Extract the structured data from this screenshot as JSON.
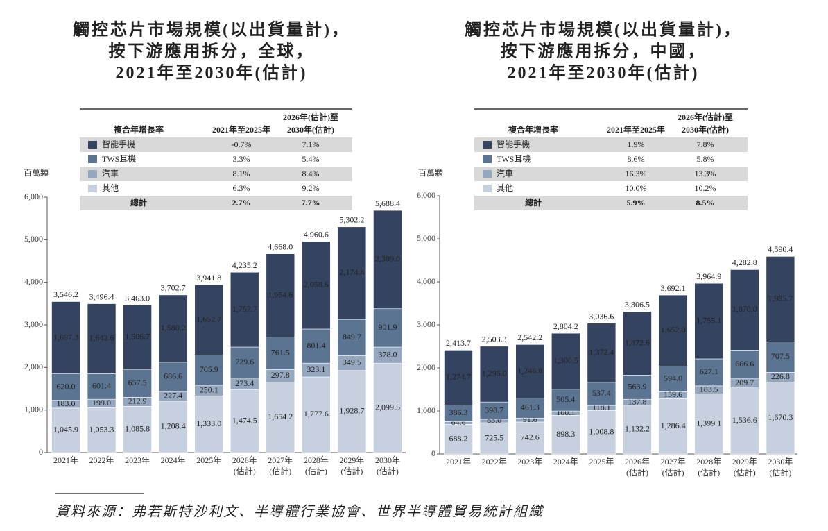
{
  "chart_data": [
    {
      "type": "stacked-bar",
      "title_lines": [
        "觸控芯片市場規模(以出貨量計)，",
        "按下游應用拆分，全球，",
        "2021年至2030年(估計)"
      ],
      "y_label": "百萬顆",
      "categories": [
        [
          "2021年"
        ],
        [
          "2022年"
        ],
        [
          "2023年"
        ],
        [
          "2024年"
        ],
        [
          "2025年"
        ],
        [
          "2026年",
          "(估計)"
        ],
        [
          "2027年",
          "(估計)"
        ],
        [
          "2028年",
          "(估計)"
        ],
        [
          "2029年",
          "(估計)"
        ],
        [
          "2030年",
          "(估計)"
        ]
      ],
      "ylim": [
        0,
        6000
      ],
      "yticks": [
        0,
        {
          "value": 1000,
          "label": "1,000"
        },
        {
          "value": 2000,
          "label": "2,000"
        },
        {
          "value": 3000,
          "label": "3,000"
        },
        {
          "value": 4000,
          "label": "4,000"
        },
        {
          "value": 5000,
          "label": "5,000"
        },
        {
          "value": 6000,
          "label": "6,000"
        }
      ],
      "series": [
        {
          "name": "智能手機",
          "color": "#34435f",
          "values": [
            1697.3,
            1642.6,
            1506.7,
            1580.2,
            1652.7,
            1757.7,
            1954.6,
            2058.6,
            2174.4,
            2309.0
          ],
          "value_labels": [
            "1,697.3",
            "1,642.6",
            "1,506.7",
            "1,580.2",
            "1,652.7",
            "1,757.7",
            "1,954.6",
            "2,058.6",
            "2,174.4",
            "2,309.0"
          ]
        },
        {
          "name": "TWS耳機",
          "color": "#5b7492",
          "values": [
            620.0,
            601.4,
            657.5,
            686.6,
            705.9,
            729.6,
            761.5,
            801.4,
            849.7,
            901.9
          ],
          "value_labels": [
            "620.0",
            "601.4",
            "657.5",
            "686.6",
            "705.9",
            "729.6",
            "761.5",
            "801.4",
            "849.7",
            "901.9"
          ]
        },
        {
          "name": "汽車",
          "color": "#95a7bf",
          "values": [
            183.0,
            199.0,
            212.9,
            227.4,
            250.1,
            273.4,
            297.8,
            323.1,
            349.5,
            378.0
          ],
          "value_labels": [
            "183.0",
            "199.0",
            "212.9",
            "227.4",
            "250.1",
            "273.4",
            "297.8",
            "323.1",
            "349.5",
            "378.0"
          ]
        },
        {
          "name": "其他",
          "color": "#c6d0de",
          "values": [
            1045.9,
            1053.3,
            1085.8,
            1208.4,
            1333.0,
            1474.5,
            1654.2,
            1777.6,
            1928.7,
            2099.5
          ],
          "value_labels": [
            "1,045.9",
            "1,053.3",
            "1,085.8",
            "1,208.4",
            "1,333.0",
            "1,474.5",
            "1,654.2",
            "1,777.6",
            "1,928.7",
            "2,099.5"
          ]
        }
      ],
      "totals": [
        3546.2,
        3496.4,
        3463.0,
        3702.7,
        3941.8,
        4235.2,
        4668.0,
        4960.6,
        5302.2,
        5688.4
      ],
      "total_labels": [
        "3,546.2",
        "3,496.4",
        "3,463.0",
        "3,702.7",
        "3,941.8",
        "4,235.2",
        "4,668.0",
        "4,960.6",
        "5,302.2",
        "5,688.4"
      ],
      "cagr_table": {
        "header": "複合年增長率",
        "columns": [
          [
            "2021年至2025年"
          ],
          [
            "2026年(估計)至",
            "2030年(估計)"
          ]
        ],
        "rows": [
          [
            "-0.7%",
            "7.1%"
          ],
          [
            "3.3%",
            "5.4%"
          ],
          [
            "8.1%",
            "8.4%"
          ],
          [
            "6.3%",
            "9.2%"
          ]
        ],
        "total_label": "總計",
        "total": [
          "2.7%",
          "7.7%"
        ]
      }
    },
    {
      "type": "stacked-bar",
      "title_lines": [
        "觸控芯片市場規模(以出貨量計)，",
        "按下游應用拆分，中國，",
        "2021年至2030年(估計)"
      ],
      "y_label": "百萬顆",
      "categories": [
        [
          "2021年"
        ],
        [
          "2022年"
        ],
        [
          "2023年"
        ],
        [
          "2024年"
        ],
        [
          "2025年"
        ],
        [
          "2026年",
          "(估計)"
        ],
        [
          "2027年",
          "(估計)"
        ],
        [
          "2028年",
          "(估計)"
        ],
        [
          "2029年",
          "(估計)"
        ],
        [
          "2030年",
          "(估計)"
        ]
      ],
      "ylim": [
        0,
        6000
      ],
      "yticks": [
        0,
        {
          "value": 1000,
          "label": "1,000"
        },
        {
          "value": 2000,
          "label": "2,000"
        },
        {
          "value": 3000,
          "label": "3,000"
        },
        {
          "value": 4000,
          "label": "4,000"
        },
        {
          "value": 5000,
          "label": "5,000"
        },
        {
          "value": 6000,
          "label": "6,000"
        }
      ],
      "series": [
        {
          "name": "智能手機",
          "color": "#34435f",
          "values": [
            1274.7,
            1296.0,
            1246.8,
            1300.5,
            1372.4,
            1472.6,
            1652.0,
            1755.1,
            1870.0,
            1985.7
          ],
          "value_labels": [
            "1,274.7",
            "1,296.0",
            "1,246.8",
            "1,300.5",
            "1,372.4",
            "1,472.6",
            "1,652.0",
            "1,755.1",
            "1,870.0",
            "1,985.7"
          ]
        },
        {
          "name": "TWS耳機",
          "color": "#5b7492",
          "values": [
            386.3,
            398.7,
            461.3,
            505.4,
            537.4,
            563.9,
            594.0,
            627.1,
            666.6,
            707.5
          ],
          "value_labels": [
            "386.3",
            "398.7",
            "461.3",
            "505.4",
            "537.4",
            "563.9",
            "594.0",
            "627.1",
            "666.6",
            "707.5"
          ]
        },
        {
          "name": "汽車",
          "color": "#95a7bf",
          "values": [
            64.6,
            83.0,
            91.6,
            100.1,
            118.1,
            137.8,
            159.6,
            183.5,
            209.7,
            226.8
          ],
          "value_labels": [
            "64.6",
            "83.0",
            "91.6",
            "100.1",
            "118.1",
            "137.8",
            "159.6",
            "183.5",
            "209.7",
            "226.8"
          ]
        },
        {
          "name": "其他",
          "color": "#c6d0de",
          "values": [
            688.2,
            725.5,
            742.6,
            898.3,
            1008.8,
            1132.2,
            1286.4,
            1399.1,
            1536.6,
            1670.3
          ],
          "value_labels": [
            "688.2",
            "725.5",
            "742.6",
            "898.3",
            "1,008.8",
            "1,132.2",
            "1,286.4",
            "1,399.1",
            "1,536.6",
            "1,670.3"
          ]
        }
      ],
      "totals": [
        2413.7,
        2503.3,
        2542.2,
        2804.2,
        3036.6,
        3306.5,
        3692.1,
        3964.9,
        4282.8,
        4590.4
      ],
      "total_labels": [
        "2,413.7",
        "2,503.3",
        "2,542.2",
        "2,804.2",
        "3,036.6",
        "3,306.5",
        "3,692.1",
        "3,964.9",
        "4,282.8",
        "4,590.4"
      ],
      "cagr_table": {
        "header": "複合年增長率",
        "columns": [
          [
            "2021年至2025年"
          ],
          [
            "2026年(估計)至",
            "2030年(估計)"
          ]
        ],
        "rows": [
          [
            "1.9%",
            "7.8%"
          ],
          [
            "8.6%",
            "5.8%"
          ],
          [
            "16.3%",
            "13.3%"
          ],
          [
            "10.0%",
            "10.2%"
          ]
        ],
        "total_label": "總計",
        "total": [
          "5.9%",
          "8.5%"
        ]
      }
    }
  ],
  "source": "資料來源：弗若斯特沙利文、半導體行業協會、世界半導體貿易統計組織"
}
